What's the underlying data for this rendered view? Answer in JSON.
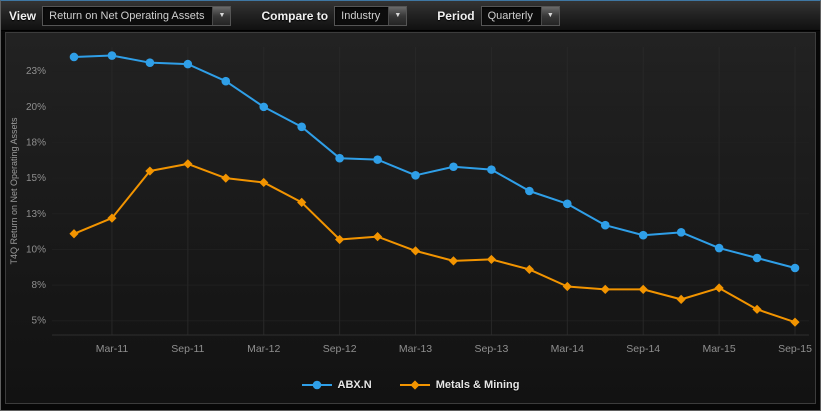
{
  "toolbar": {
    "view_label": "View",
    "view_value": "Return on Net Operating Assets",
    "compare_label": "Compare to",
    "compare_value": "Industry",
    "period_label": "Period",
    "period_value": "Quarterly"
  },
  "chart_data": {
    "type": "line",
    "title": "",
    "xlabel": "",
    "ylabel": "T4Q Return on Net Operating Assets",
    "grid": true,
    "legend_position": "bottom",
    "ylim": [
      4,
      24.2
    ],
    "x": [
      "Dec-10",
      "Mar-11",
      "Jun-11",
      "Sep-11",
      "Dec-11",
      "Mar-12",
      "Jun-12",
      "Sep-12",
      "Dec-12",
      "Mar-13",
      "Jun-13",
      "Sep-13",
      "Dec-13",
      "Mar-14",
      "Jun-14",
      "Sep-14",
      "Dec-14",
      "Mar-15",
      "Jun-15",
      "Sep-15"
    ],
    "x_tick_indices": [
      1,
      3,
      5,
      7,
      9,
      11,
      13,
      15,
      17,
      19
    ],
    "x_tick_labels": [
      "Mar-11",
      "Sep-11",
      "Mar-12",
      "Sep-12",
      "Mar-13",
      "Sep-13",
      "Mar-14",
      "Sep-14",
      "Mar-15",
      "Sep-15"
    ],
    "y_ticks": [
      {
        "value": 22.5,
        "label": "23%"
      },
      {
        "value": 20.0,
        "label": "20%"
      },
      {
        "value": 17.5,
        "label": "18%"
      },
      {
        "value": 15.0,
        "label": "15%"
      },
      {
        "value": 12.5,
        "label": "13%"
      },
      {
        "value": 10.0,
        "label": "10%"
      },
      {
        "value": 7.5,
        "label": "8%"
      },
      {
        "value": 5.0,
        "label": "5%"
      }
    ],
    "series": [
      {
        "name": "ABX.N",
        "color": "#2f9fe8",
        "marker": "circle",
        "values": [
          23.5,
          23.6,
          23.1,
          23.0,
          21.8,
          20.0,
          18.6,
          16.4,
          16.3,
          15.2,
          15.8,
          15.6,
          14.1,
          13.2,
          11.7,
          11.0,
          11.2,
          10.1,
          9.4,
          8.7
        ]
      },
      {
        "name": "Metals & Mining",
        "color": "#f29400",
        "marker": "diamond",
        "values": [
          11.1,
          12.2,
          15.5,
          16.0,
          15.0,
          14.7,
          13.3,
          10.7,
          10.9,
          9.9,
          9.2,
          9.3,
          8.6,
          7.4,
          7.2,
          7.2,
          6.5,
          7.3,
          5.8,
          4.9
        ]
      }
    ]
  }
}
